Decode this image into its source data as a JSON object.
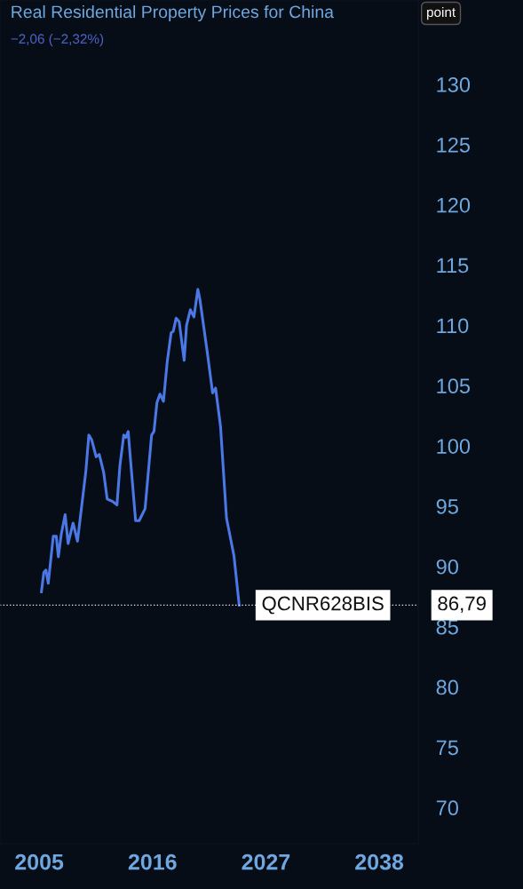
{
  "chart_data": {
    "type": "line",
    "title": "Real Residential Property Prices for China",
    "subtitle": "−2,06 (−2,32%)",
    "annotations": [
      "point",
      "86,79"
    ],
    "x": [
      2005.22,
      2005.45,
      2005.66,
      2005.88,
      2006.37,
      2006.66,
      2006.86,
      2007.15,
      2007.52,
      2007.81,
      2008.29,
      2008.72,
      2009.53,
      2009.82,
      2010.1,
      2010.53,
      2010.83,
      2011.26,
      2011.6,
      2012.12,
      2012.55,
      2012.84,
      2013.21,
      2013.41,
      2013.64,
      2013.84,
      2014.36,
      2014.71,
      2015.28,
      2015.91,
      2016.14,
      2016.43,
      2016.72,
      2017.06,
      2017.43,
      2017.81,
      2018.01,
      2018.29,
      2018.59,
      2019.07,
      2019.3,
      2019.67,
      2020.02,
      2020.4,
      2020.59,
      2021.31,
      2021.83,
      2022.12,
      2022.6,
      2023.18,
      2023.9,
      2024.41
    ],
    "series": [
      {
        "color": "#4a78e6",
        "values": [
          87.9,
          89.5,
          89.7,
          88.6,
          92.5,
          92.5,
          90.8,
          92.7,
          94.3,
          91.9,
          93.6,
          92.1,
          97.9,
          100.9,
          100.5,
          99.1,
          99.3,
          97.8,
          95.6,
          95.4,
          95.1,
          98.4,
          100.9,
          100.7,
          101.2,
          99.1,
          93.8,
          93.8,
          94.8,
          100.9,
          101.2,
          103.6,
          104.3,
          103.7,
          107.0,
          109.4,
          109.5,
          110.6,
          110.3,
          107.1,
          110.0,
          111.3,
          110.7,
          113.0,
          112.2,
          107.8,
          104.4,
          104.8,
          101.6,
          94.0,
          90.9,
          86.79
        ]
      }
    ],
    "xlim": [
      2001.2,
      2041.8
    ],
    "xticks": [
      2005,
      2016,
      2027,
      2038
    ],
    "ylim": [
      67,
      137
    ],
    "yticks": [
      70,
      75,
      80,
      85,
      90,
      95,
      100,
      105,
      110,
      115,
      120,
      125,
      130
    ],
    "ref_lines": [
      {
        "axis": "y",
        "value": 86.79,
        "label": "QCNR628BIS",
        "color": "#e6e6e6",
        "line_style": "dotted"
      }
    ],
    "grid": false,
    "legend": false,
    "marker": "none",
    "line_style": "solid"
  }
}
